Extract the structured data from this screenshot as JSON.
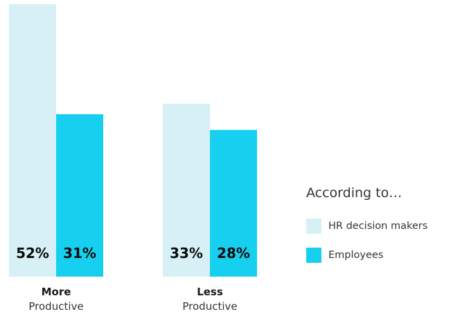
{
  "chart_data": {
    "type": "bar",
    "title": "",
    "xlabel": "",
    "ylabel": "",
    "categories": [
      {
        "name": "More",
        "sub": "Productive"
      },
      {
        "name": "Less",
        "sub": "Productive"
      }
    ],
    "series": [
      {
        "name": "HR decision makers",
        "color": "#d6f0f6",
        "values": [
          52,
          33
        ],
        "labels": [
          "52%",
          "33%"
        ]
      },
      {
        "name": "Employees",
        "color": "#17d0ef",
        "values": [
          31,
          28
        ],
        "labels": [
          "31%",
          "28%"
        ]
      }
    ],
    "ylim": [
      0,
      52
    ],
    "grid": false,
    "legend_position": "right"
  },
  "legend": {
    "title": "According to…"
  }
}
